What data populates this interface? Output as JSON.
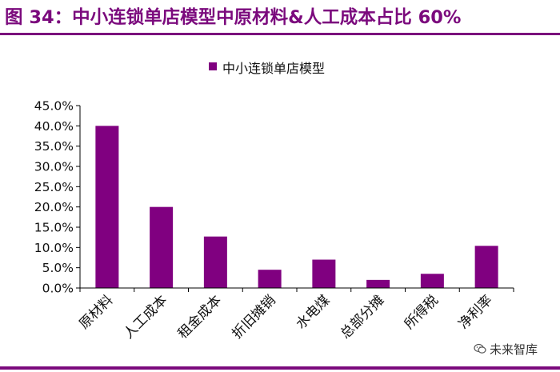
{
  "figure": {
    "title": "图 34：中小连锁单店模型中原材料&人工成本占比 60%",
    "watermark": "未来智库",
    "accent_color": "#7b0a7d"
  },
  "chart_data": {
    "type": "bar",
    "categories": [
      "原材料",
      "人工成本",
      "租金成本",
      "折旧摊销",
      "水电煤",
      "总部分摊",
      "所得税",
      "净利率"
    ],
    "series": [
      {
        "name": "中小连锁单店模型",
        "values": [
          40.0,
          20.0,
          12.7,
          4.5,
          7.0,
          2.0,
          3.5,
          10.4
        ],
        "color": "#800080"
      }
    ],
    "y_ticks": [
      "0.0%",
      "5.0%",
      "10.0%",
      "15.0%",
      "20.0%",
      "25.0%",
      "30.0%",
      "35.0%",
      "40.0%",
      "45.0%"
    ],
    "ylim": [
      0,
      45
    ],
    "legend_position": "top",
    "grid": false
  }
}
